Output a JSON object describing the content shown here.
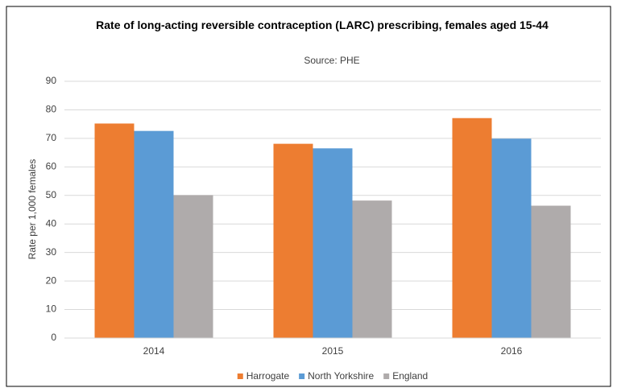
{
  "chart_data": {
    "type": "bar",
    "title": "Rate of long-acting reversible contraception (LARC) prescribing, females aged 15-44",
    "subtitle": "Source: PHE",
    "y_label": "Rate per 1,000 females",
    "categories": [
      "2014",
      "2015",
      "2016"
    ],
    "series": [
      {
        "name": "Harrogate",
        "color": "#ed7d31",
        "values": [
          75.2,
          68.1,
          77.1
        ]
      },
      {
        "name": "North Yorkshire",
        "color": "#5b9bd5",
        "values": [
          72.6,
          66.5,
          69.9
        ]
      },
      {
        "name": "England",
        "color": "#afabab",
        "values": [
          50.1,
          48.2,
          46.4
        ]
      }
    ],
    "ylim": [
      0,
      90
    ],
    "yticks": [
      0,
      10,
      20,
      30,
      40,
      50,
      60,
      70,
      80,
      90
    ],
    "grid": true,
    "legend": "bottom"
  }
}
